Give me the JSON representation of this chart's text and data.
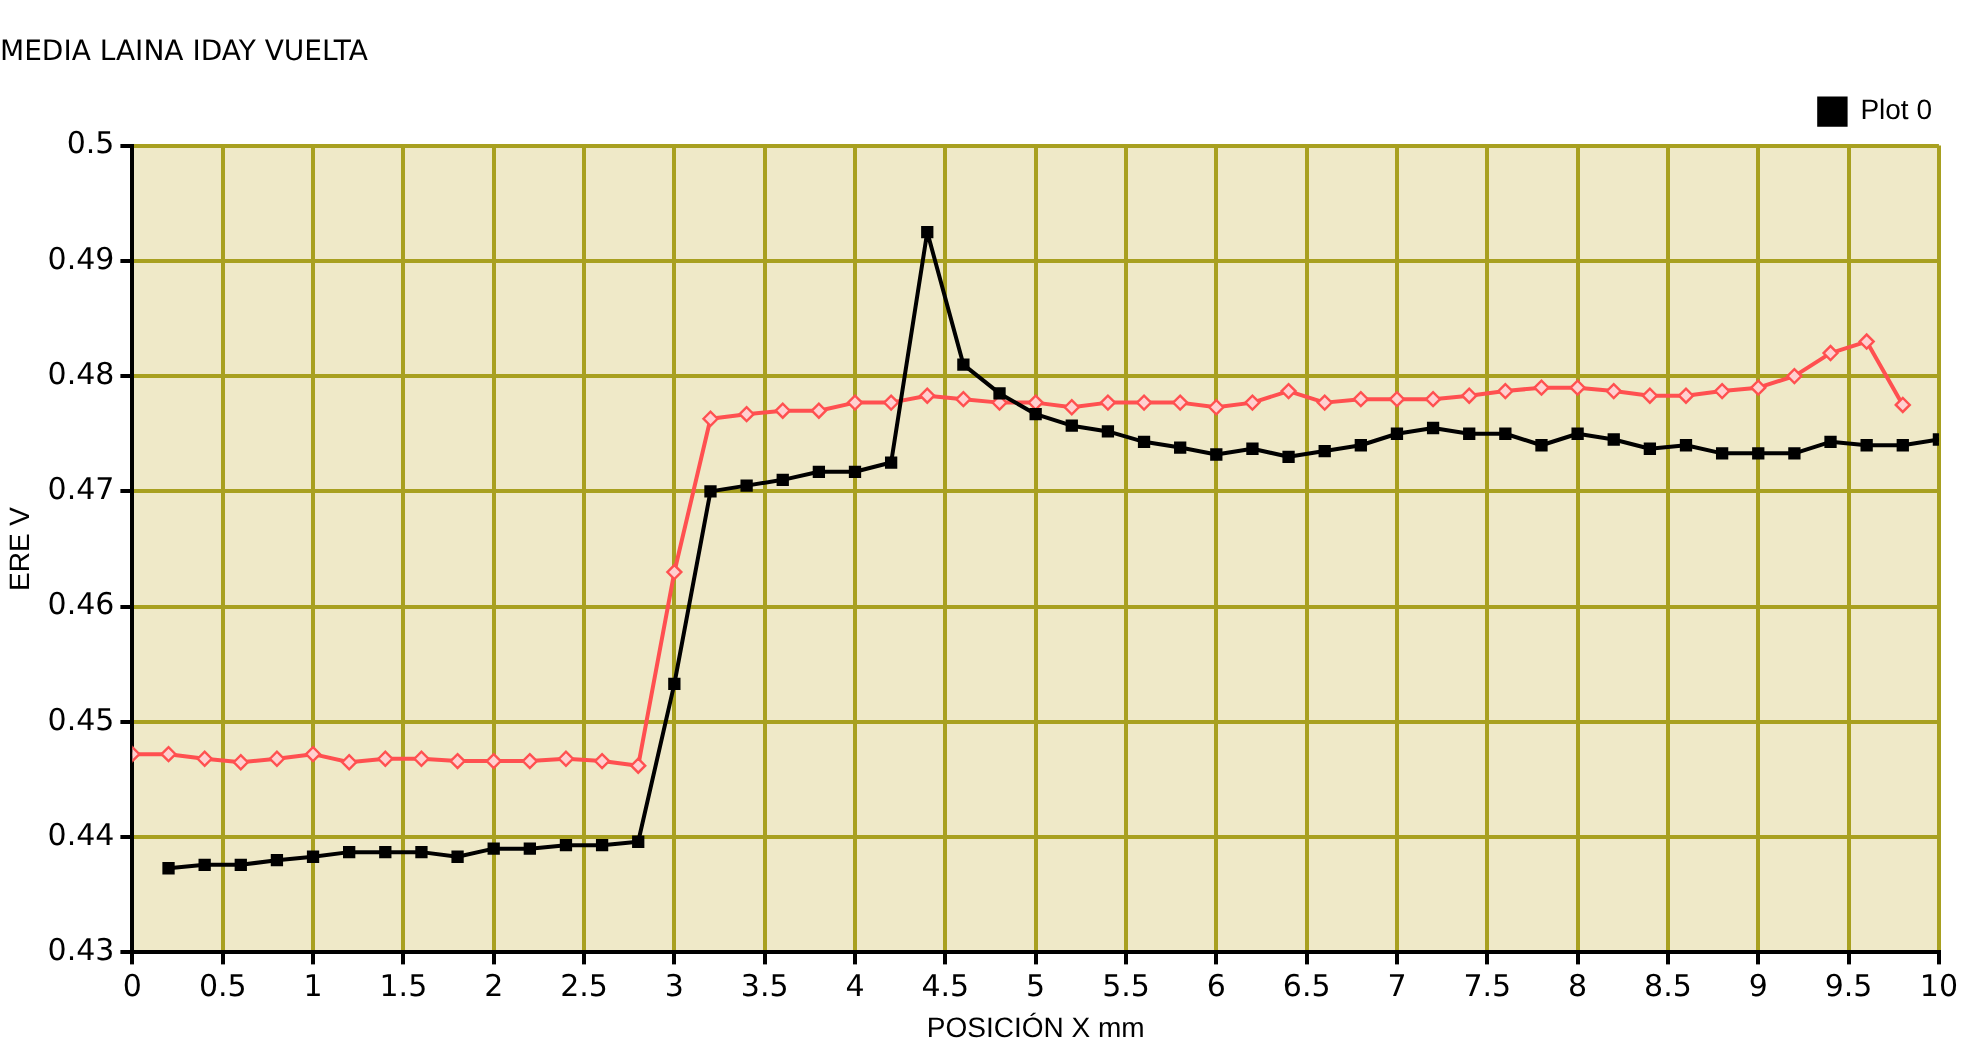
{
  "chart_data": {
    "type": "line",
    "title": "MEDIA LAINA IDAY VUELTA",
    "xlabel": "POSICIÓN X mm",
    "ylabel": "ERE V",
    "xlim": [
      0,
      10
    ],
    "xticks": [
      0,
      0.5,
      1,
      1.5,
      2,
      2.5,
      3,
      3.5,
      4,
      4.5,
      5,
      5.5,
      6,
      6.5,
      7,
      7.5,
      8,
      8.5,
      9,
      9.5,
      10
    ],
    "ylim": [
      0.43,
      0.5
    ],
    "yticks": [
      0.43,
      0.44,
      0.45,
      0.46,
      0.47,
      0.48,
      0.49,
      0.5
    ],
    "grid": true,
    "legend": "top right",
    "line_style": "solid",
    "series": [
      {
        "name": "Plot 0",
        "color": "#000000",
        "marker": "square",
        "x": [
          0.2,
          0.4,
          0.6,
          0.8,
          1.0,
          1.2,
          1.4,
          1.6,
          1.8,
          2.0,
          2.2,
          2.4,
          2.6,
          2.8,
          3.0,
          3.2,
          3.4,
          3.6,
          3.8,
          4.0,
          4.2,
          4.4,
          4.6,
          4.8,
          5.0,
          5.2,
          5.4,
          5.6,
          5.8,
          6.0,
          6.2,
          6.4,
          6.6,
          6.8,
          7.0,
          7.2,
          7.4,
          7.6,
          7.8,
          8.0,
          8.2,
          8.4,
          8.6,
          8.8,
          9.0,
          9.2,
          9.4,
          9.6,
          9.8,
          10
        ],
        "values": [
          0.4373,
          0.4376,
          0.4376,
          0.438,
          0.4383,
          0.4387,
          0.4387,
          0.4387,
          0.4383,
          0.439,
          0.439,
          0.4393,
          0.4393,
          0.4396,
          0.4533,
          0.47,
          0.4705,
          0.471,
          0.4717,
          0.4717,
          0.4725,
          0.4925,
          0.481,
          0.4785,
          0.4767,
          0.4757,
          0.4752,
          0.4743,
          0.4738,
          0.4732,
          0.4737,
          0.473,
          0.4735,
          0.474,
          0.475,
          0.4755,
          0.475,
          0.475,
          0.474,
          0.475,
          0.4745,
          0.4737,
          0.474,
          0.4733,
          0.4733,
          0.4733,
          0.4743,
          0.474,
          0.474,
          0.4745
        ]
      },
      {
        "color": "#ff5050",
        "marker": "diamond",
        "x": [
          0,
          0.2,
          0.4,
          0.6,
          0.8,
          1.0,
          1.2,
          1.4,
          1.6,
          1.8,
          2.0,
          2.2,
          2.4,
          2.6,
          2.8,
          3.0,
          3.2,
          3.4,
          3.6,
          3.8,
          4.0,
          4.2,
          4.4,
          4.6,
          4.8,
          5.0,
          5.2,
          5.4,
          5.6,
          5.8,
          6.0,
          6.2,
          6.4,
          6.6,
          6.8,
          7.0,
          7.2,
          7.4,
          7.6,
          7.8,
          8.0,
          8.2,
          8.4,
          8.6,
          8.8,
          9.0,
          9.2,
          9.4,
          9.6,
          9.8
        ],
        "values": [
          0.4472,
          0.4472,
          0.4468,
          0.4465,
          0.4468,
          0.4472,
          0.4465,
          0.4468,
          0.4468,
          0.4466,
          0.4466,
          0.4466,
          0.4468,
          0.4466,
          0.4462,
          0.463,
          0.4763,
          0.4767,
          0.477,
          0.477,
          0.4777,
          0.4777,
          0.4783,
          0.478,
          0.4777,
          0.4777,
          0.4773,
          0.4777,
          0.4777,
          0.4777,
          0.4773,
          0.4777,
          0.4787,
          0.4777,
          0.478,
          0.478,
          0.478,
          0.4783,
          0.4787,
          0.479,
          0.479,
          0.4787,
          0.4783,
          0.4783,
          0.4787,
          0.479,
          0.48,
          0.482,
          0.483,
          0.4775
        ]
      }
    ]
  }
}
